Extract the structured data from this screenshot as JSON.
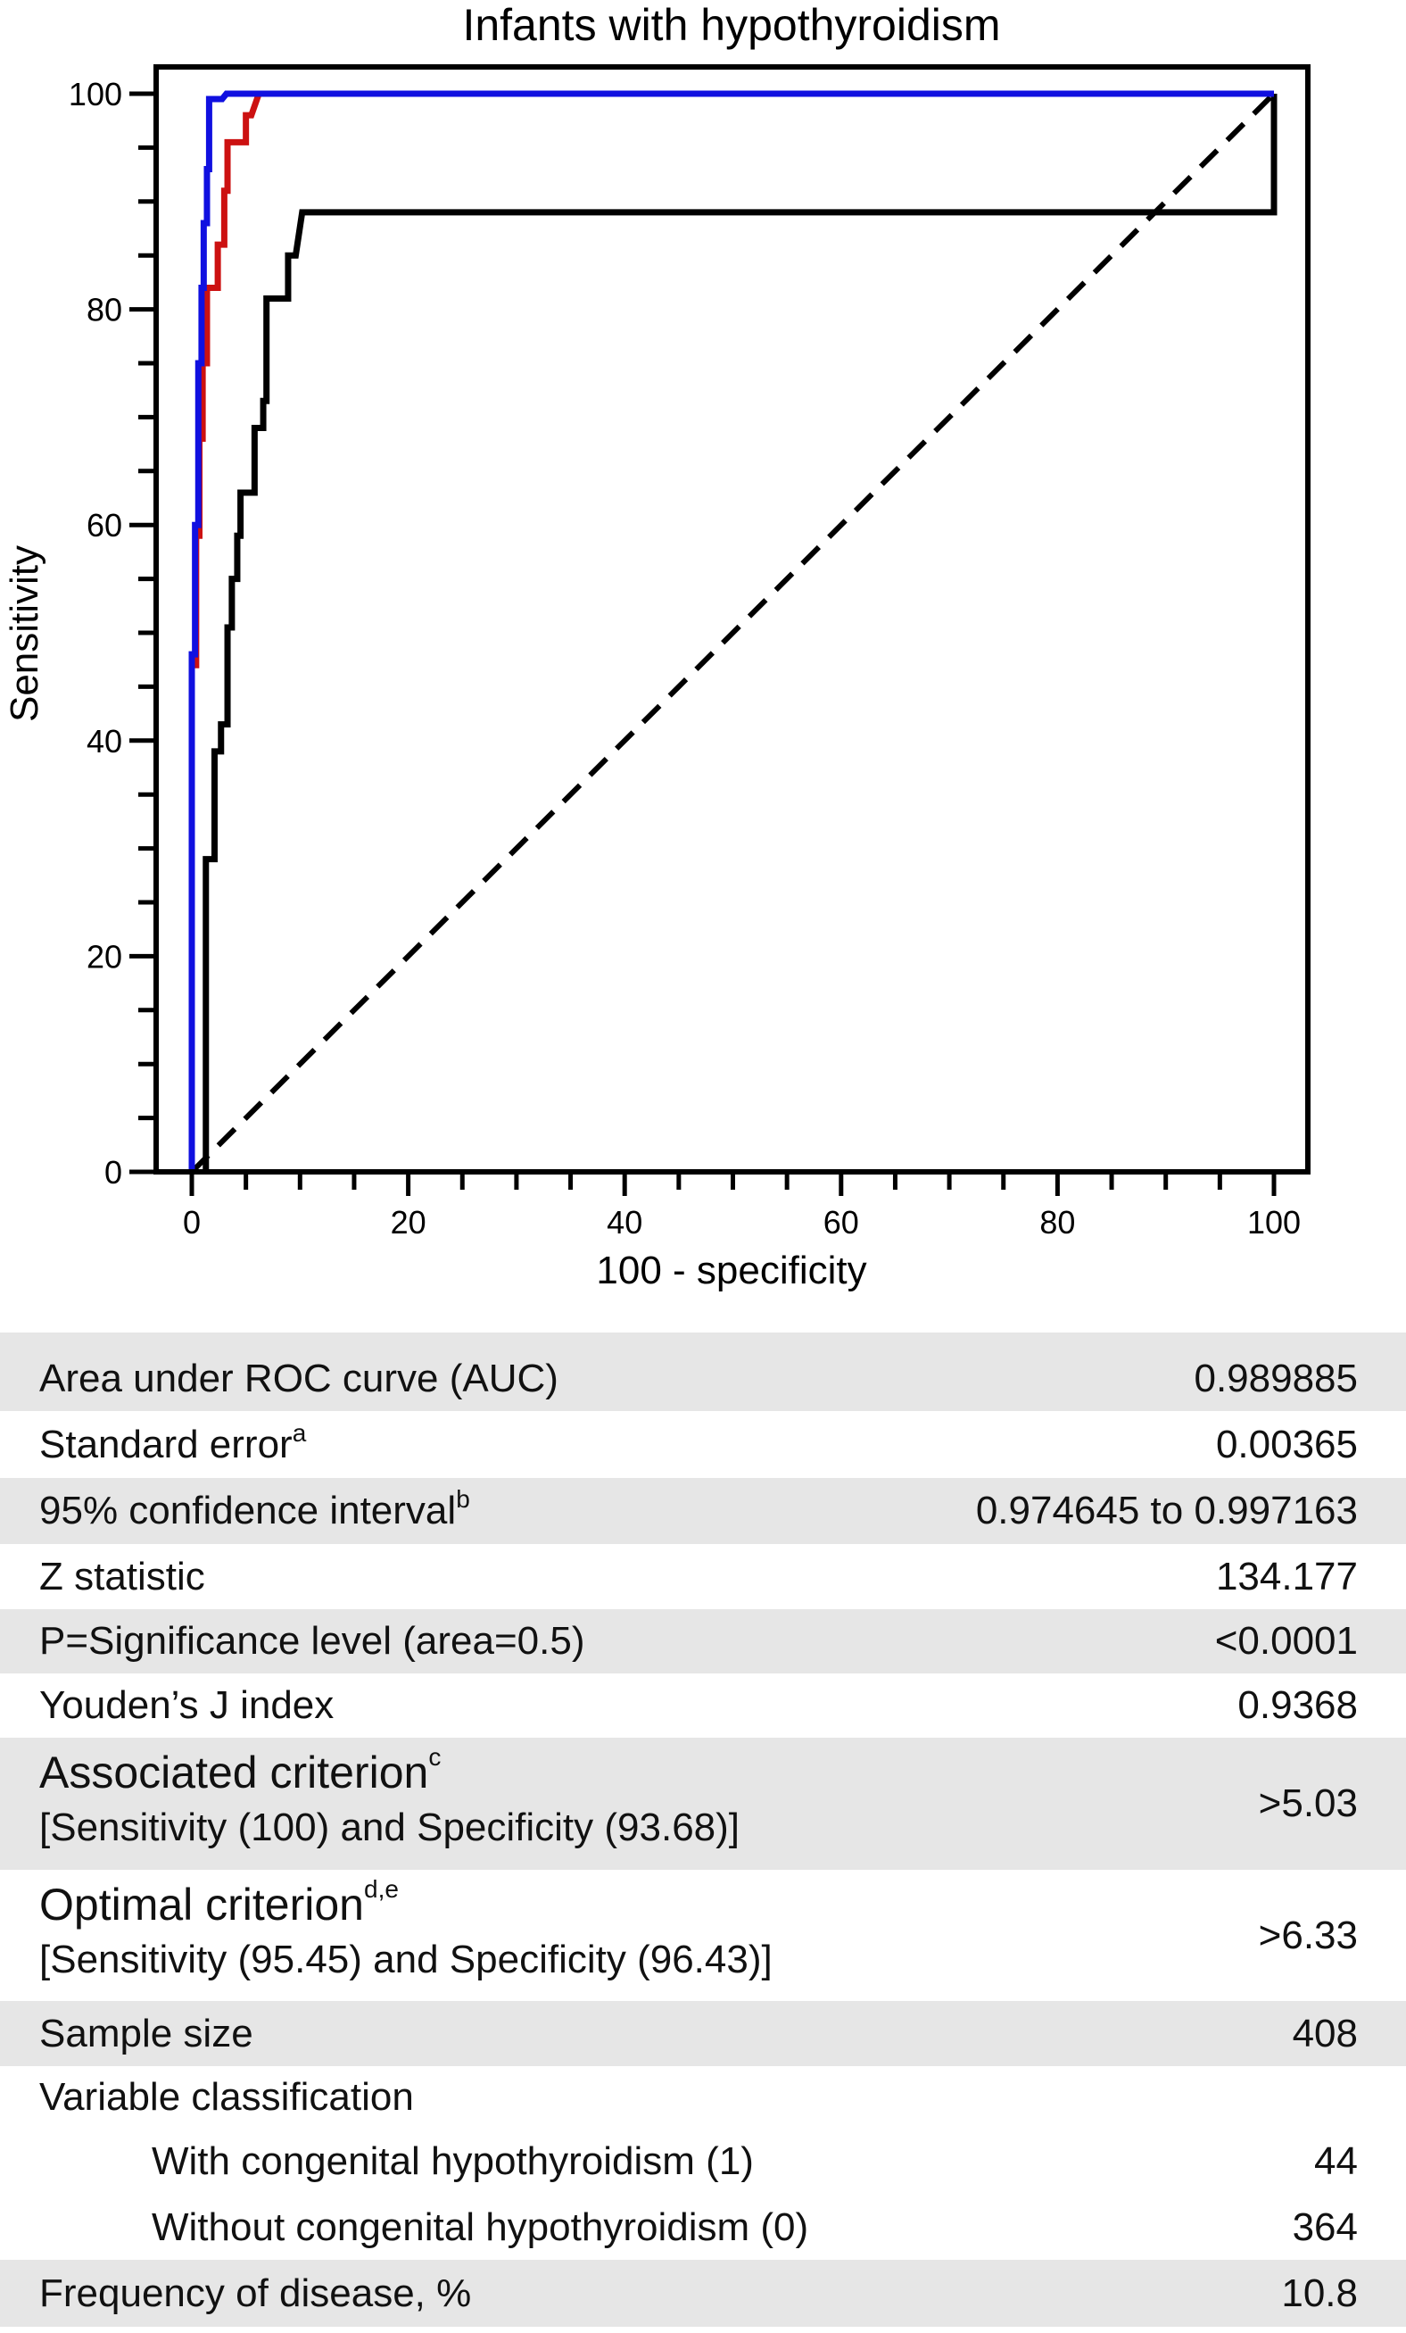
{
  "chart_data": {
    "type": "line",
    "title": "Infants with hypothyroidism",
    "xlabel": "100 - specificity",
    "ylabel": "Sensitivity",
    "xlim": [
      0,
      100
    ],
    "ylim": [
      0,
      100
    ],
    "xticks": [
      0,
      20,
      40,
      60,
      80,
      100
    ],
    "yticks": [
      0,
      20,
      40,
      60,
      80,
      100
    ],
    "minor_tick_step": 5,
    "grid": false,
    "series": [
      {
        "color": "#1010e0",
        "points": [
          [
            0,
            0
          ],
          [
            0,
            48
          ],
          [
            0.3,
            48
          ],
          [
            0.3,
            60
          ],
          [
            0.6,
            60
          ],
          [
            0.6,
            75
          ],
          [
            0.9,
            75
          ],
          [
            0.9,
            82
          ],
          [
            1.1,
            82
          ],
          [
            1.1,
            88
          ],
          [
            1.4,
            88
          ],
          [
            1.4,
            93
          ],
          [
            1.6,
            93
          ],
          [
            1.6,
            99.5
          ],
          [
            2.8,
            99.5
          ],
          [
            3.2,
            100
          ],
          [
            5,
            100
          ],
          [
            100,
            100
          ]
        ]
      },
      {
        "color": "#cc1111",
        "points": [
          [
            0,
            0
          ],
          [
            0,
            47
          ],
          [
            0.4,
            47
          ],
          [
            0.4,
            59
          ],
          [
            0.7,
            59
          ],
          [
            0.7,
            68
          ],
          [
            1,
            68
          ],
          [
            1,
            75
          ],
          [
            1.4,
            75
          ],
          [
            1.4,
            82
          ],
          [
            2.4,
            82
          ],
          [
            2.4,
            86
          ],
          [
            3,
            86
          ],
          [
            3,
            91
          ],
          [
            3.3,
            91
          ],
          [
            3.3,
            95.5
          ],
          [
            5,
            95.5
          ],
          [
            5,
            98
          ],
          [
            5.5,
            98
          ],
          [
            6.2,
            100
          ],
          [
            100,
            100
          ]
        ]
      },
      {
        "color": "#000000",
        "points": [
          [
            1.3,
            0
          ],
          [
            1.3,
            29
          ],
          [
            2.1,
            29
          ],
          [
            2.1,
            39
          ],
          [
            2.7,
            39
          ],
          [
            2.7,
            41.5
          ],
          [
            3.3,
            41.5
          ],
          [
            3.3,
            50.5
          ],
          [
            3.7,
            50.5
          ],
          [
            3.7,
            55
          ],
          [
            4.2,
            55
          ],
          [
            4.2,
            59
          ],
          [
            4.5,
            59
          ],
          [
            4.5,
            63
          ],
          [
            5.8,
            63
          ],
          [
            5.8,
            69
          ],
          [
            6.6,
            69
          ],
          [
            6.6,
            71.5
          ],
          [
            6.9,
            71.5
          ],
          [
            6.9,
            81
          ],
          [
            8.9,
            81
          ],
          [
            8.9,
            85
          ],
          [
            9.6,
            85
          ],
          [
            10.2,
            89
          ],
          [
            100,
            89
          ],
          [
            100,
            100
          ]
        ]
      },
      {
        "color": "#000000",
        "dashed": true,
        "points": [
          [
            0,
            0
          ],
          [
            100,
            100
          ]
        ]
      }
    ]
  },
  "stats": [
    {
      "label": "Area under ROC curve (AUC)",
      "value": "0.989885",
      "gray": true
    },
    {
      "label": "Standard error",
      "sup": "a",
      "value": "0.00365",
      "gray": false
    },
    {
      "label": "95% confidence interval",
      "sup": "b",
      "value": "0.974645 to 0.997163",
      "gray": true
    },
    {
      "label": "Z statistic",
      "value": "134.177",
      "gray": false
    },
    {
      "label": "P=Significance level (area=0.5)",
      "value": "<0.0001",
      "gray": true
    },
    {
      "label": "Youden’s J index",
      "value": "0.9368",
      "gray": false
    },
    {
      "label": "Associated criterion",
      "sup": "c",
      "sublabel": "[Sensitivity (100) and Specificity (93.68)]",
      "value": ">5.03",
      "gray": true
    },
    {
      "label": "Optimal criterion",
      "sup": "d,e",
      "sublabel": "[Sensitivity (95.45) and Specificity (96.43)]",
      "value": ">6.33",
      "gray": false
    },
    {
      "label": "Sample size",
      "value": "408",
      "gray": true
    },
    {
      "label": "Variable classification",
      "value": "",
      "gray": false
    },
    {
      "label": "With congenital hypothyroidism (1)",
      "value": "44",
      "gray": false,
      "indent": true
    },
    {
      "label": "Without congenital hypothyroidism (0)",
      "value": "364",
      "gray": false,
      "indent": true
    },
    {
      "label": "Frequency of disease, %",
      "value": "10.8",
      "gray": true
    }
  ]
}
